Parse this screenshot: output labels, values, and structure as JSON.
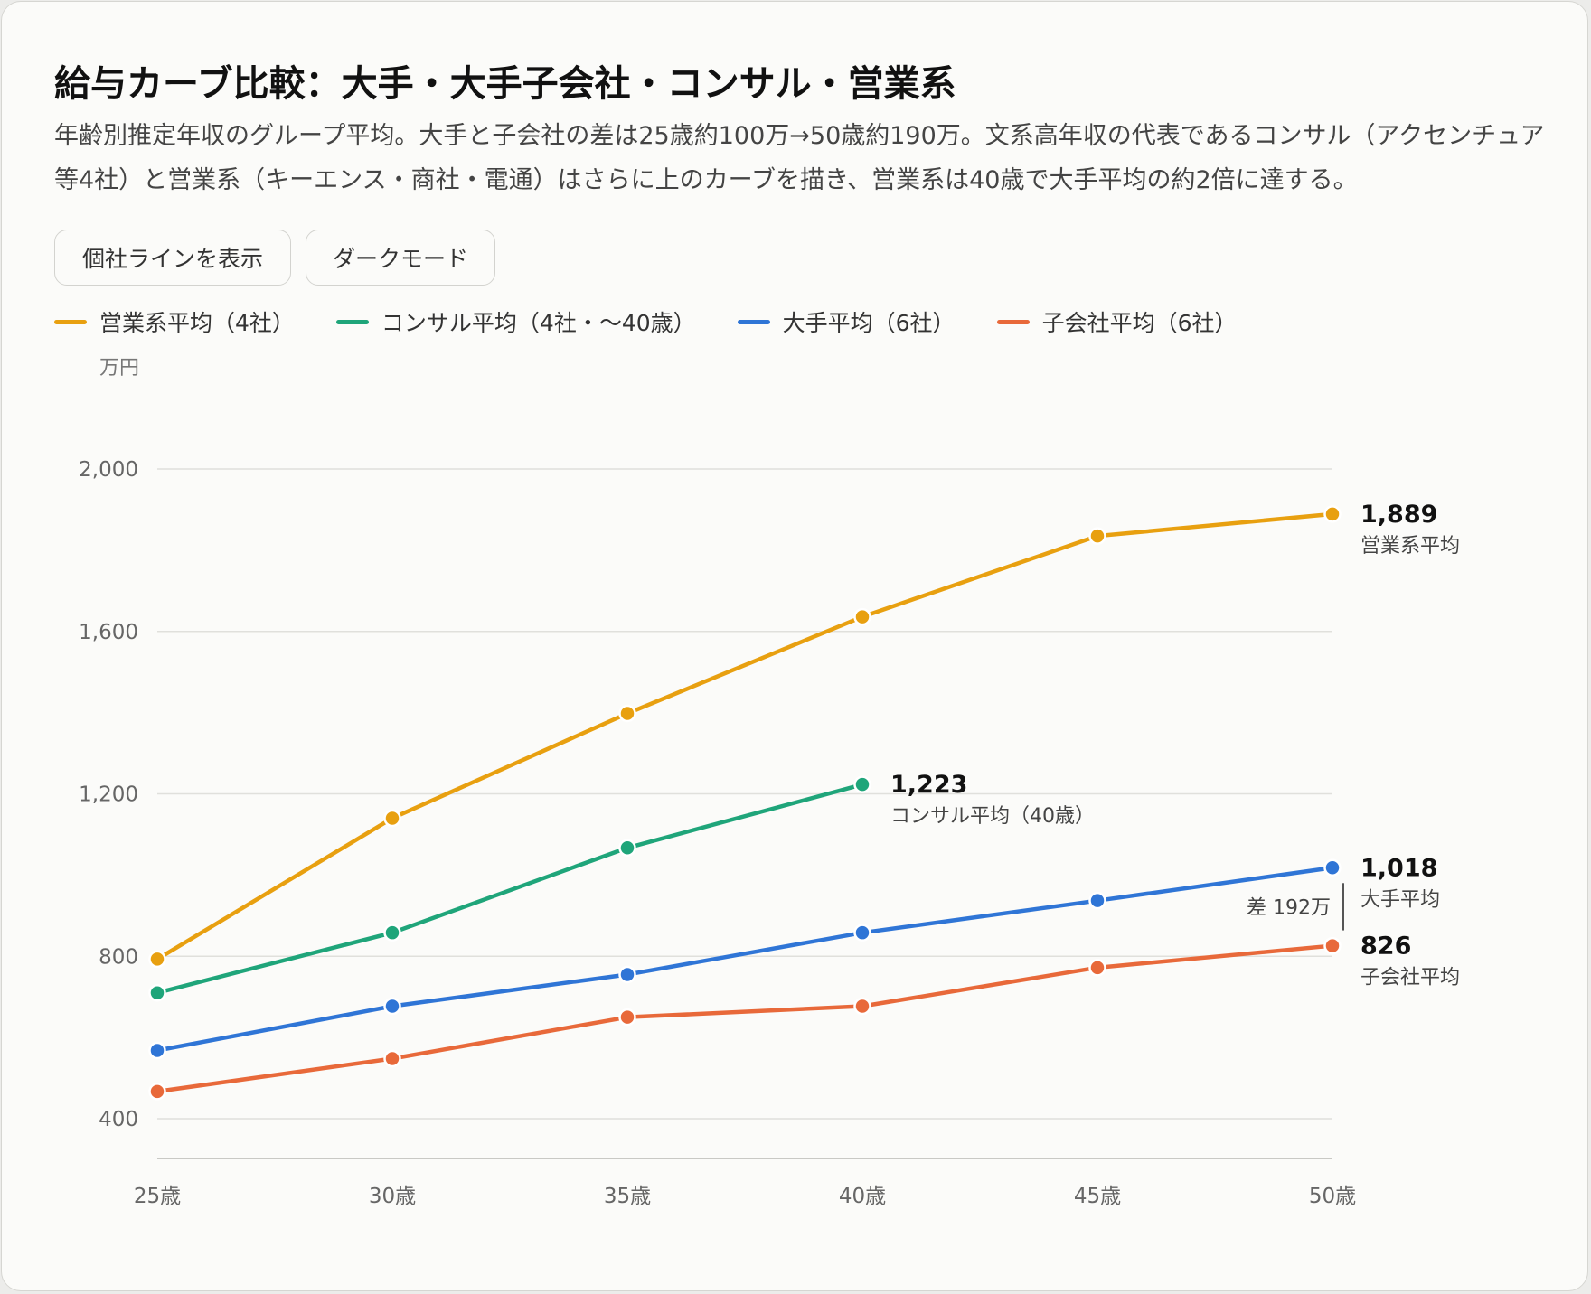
{
  "header": {
    "title": "給与カーブ比較：大手・大手子会社・コンサル・営業系",
    "subtitle": "年齢別推定年収のグループ平均。大手と子会社の差は25歳約100万→50歳約190万。文系高年収の代表であるコンサル（アクセンチュア等4社）と営業系（キーエンス・商社・電通）はさらに上のカーブを描き、営業系は40歳で大手平均の約2倍に達する。"
  },
  "controls": {
    "show_individual_label": "個社ラインを表示",
    "dark_mode_label": "ダークモード"
  },
  "chart_data": {
    "type": "line",
    "y_unit": "万円",
    "categories": [
      "25歳",
      "30歳",
      "35歳",
      "40歳",
      "45歳",
      "50歳"
    ],
    "ylim": [
      400,
      2000
    ],
    "yticks": [
      400,
      800,
      1200,
      1600,
      2000
    ],
    "ytick_labels": [
      "400",
      "800",
      "1,200",
      "1,600",
      "2,000"
    ],
    "grid": true,
    "legend_position": "top-left",
    "series": [
      {
        "key": "sales",
        "name": "営業系平均（4社）",
        "end_label": "営業系平均",
        "end_value_label": "1,889",
        "color": "#e8a010",
        "values": [
          793,
          1140,
          1398,
          1636,
          1835,
          1889
        ]
      },
      {
        "key": "consul",
        "name": "コンサル平均（4社・〜40歳）",
        "end_label": "コンサル平均（40歳）",
        "end_value_label": "1,223",
        "color": "#1fa57a",
        "values": [
          710,
          858,
          1067,
          1223,
          null,
          null
        ]
      },
      {
        "key": "major",
        "name": "大手平均（6社）",
        "end_label": "大手平均",
        "end_value_label": "1,018",
        "color": "#2f75d6",
        "values": [
          568,
          677,
          755,
          858,
          937,
          1018
        ]
      },
      {
        "key": "sub",
        "name": "子会社平均（6社）",
        "end_label": "子会社平均",
        "end_value_label": "826",
        "color": "#e8693a",
        "values": [
          467,
          548,
          650,
          677,
          772,
          826
        ]
      }
    ],
    "annotation": {
      "text": "差 192万",
      "between": [
        "major",
        "sub"
      ],
      "category": "50歳"
    }
  }
}
